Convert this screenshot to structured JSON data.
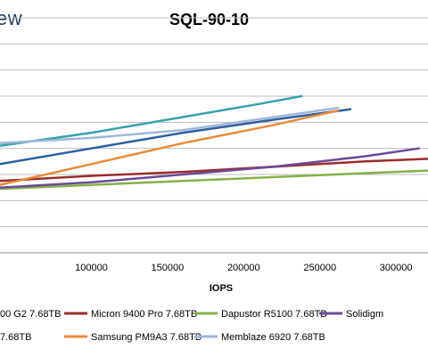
{
  "brand": {
    "text": "ew"
  },
  "chart_data": {
    "type": "line",
    "title": "SQL-90-10",
    "xlabel": "IOPS",
    "ylabel": "",
    "x_ticks": [
      100000,
      150000,
      200000,
      250000,
      300000
    ],
    "x_tick_labels": [
      "100000",
      "150000",
      "200000",
      "250000",
      "300000"
    ],
    "xlim": [
      40000,
      321000
    ],
    "ylim": [
      0,
      9
    ],
    "grid": true,
    "legend_position": "bottom",
    "series": [
      {
        "name": "00 G2 7.68TB",
        "color": "#2e5f9e",
        "points": [
          [
            40000,
            3.4
          ],
          [
            100000,
            4.0
          ],
          [
            160000,
            4.6
          ],
          [
            220000,
            5.1
          ],
          [
            270000,
            5.5
          ]
        ]
      },
      {
        "name": "Micron 9400 Pro 7.68TB",
        "color": "#9b2d2d",
        "points": [
          [
            40000,
            2.75
          ],
          [
            100000,
            2.95
          ],
          [
            160000,
            3.1
          ],
          [
            220000,
            3.3
          ],
          [
            280000,
            3.5
          ],
          [
            321000,
            3.6
          ]
        ]
      },
      {
        "name": "Dapustor R5100 7.68TB",
        "color": "#86b04a",
        "points": [
          [
            40000,
            2.45
          ],
          [
            100000,
            2.6
          ],
          [
            160000,
            2.75
          ],
          [
            220000,
            2.9
          ],
          [
            280000,
            3.05
          ],
          [
            321000,
            3.15
          ]
        ]
      },
      {
        "name": "Solidigm",
        "color": "#6a4a96",
        "points": [
          [
            40000,
            2.5
          ],
          [
            100000,
            2.7
          ],
          [
            160000,
            3.0
          ],
          [
            220000,
            3.3
          ],
          [
            280000,
            3.7
          ],
          [
            315000,
            4.0
          ]
        ]
      },
      {
        "name": "7.68TB",
        "color": "#3aa0aa",
        "points": [
          [
            40000,
            4.1
          ],
          [
            100000,
            4.6
          ],
          [
            160000,
            5.2
          ],
          [
            210000,
            5.7
          ],
          [
            238000,
            6.0
          ]
        ]
      },
      {
        "name": "Samsung PM9A3 7.68TB",
        "color": "#e88b3c",
        "points": [
          [
            40000,
            2.6
          ],
          [
            100000,
            3.4
          ],
          [
            160000,
            4.2
          ],
          [
            220000,
            4.9
          ],
          [
            262000,
            5.45
          ]
        ]
      },
      {
        "name": "Memblaze 6920 7.68TB",
        "color": "#9fb6d8",
        "points": [
          [
            40000,
            4.2
          ],
          [
            100000,
            4.4
          ],
          [
            160000,
            4.7
          ],
          [
            220000,
            5.2
          ],
          [
            262000,
            5.55
          ]
        ]
      }
    ]
  }
}
